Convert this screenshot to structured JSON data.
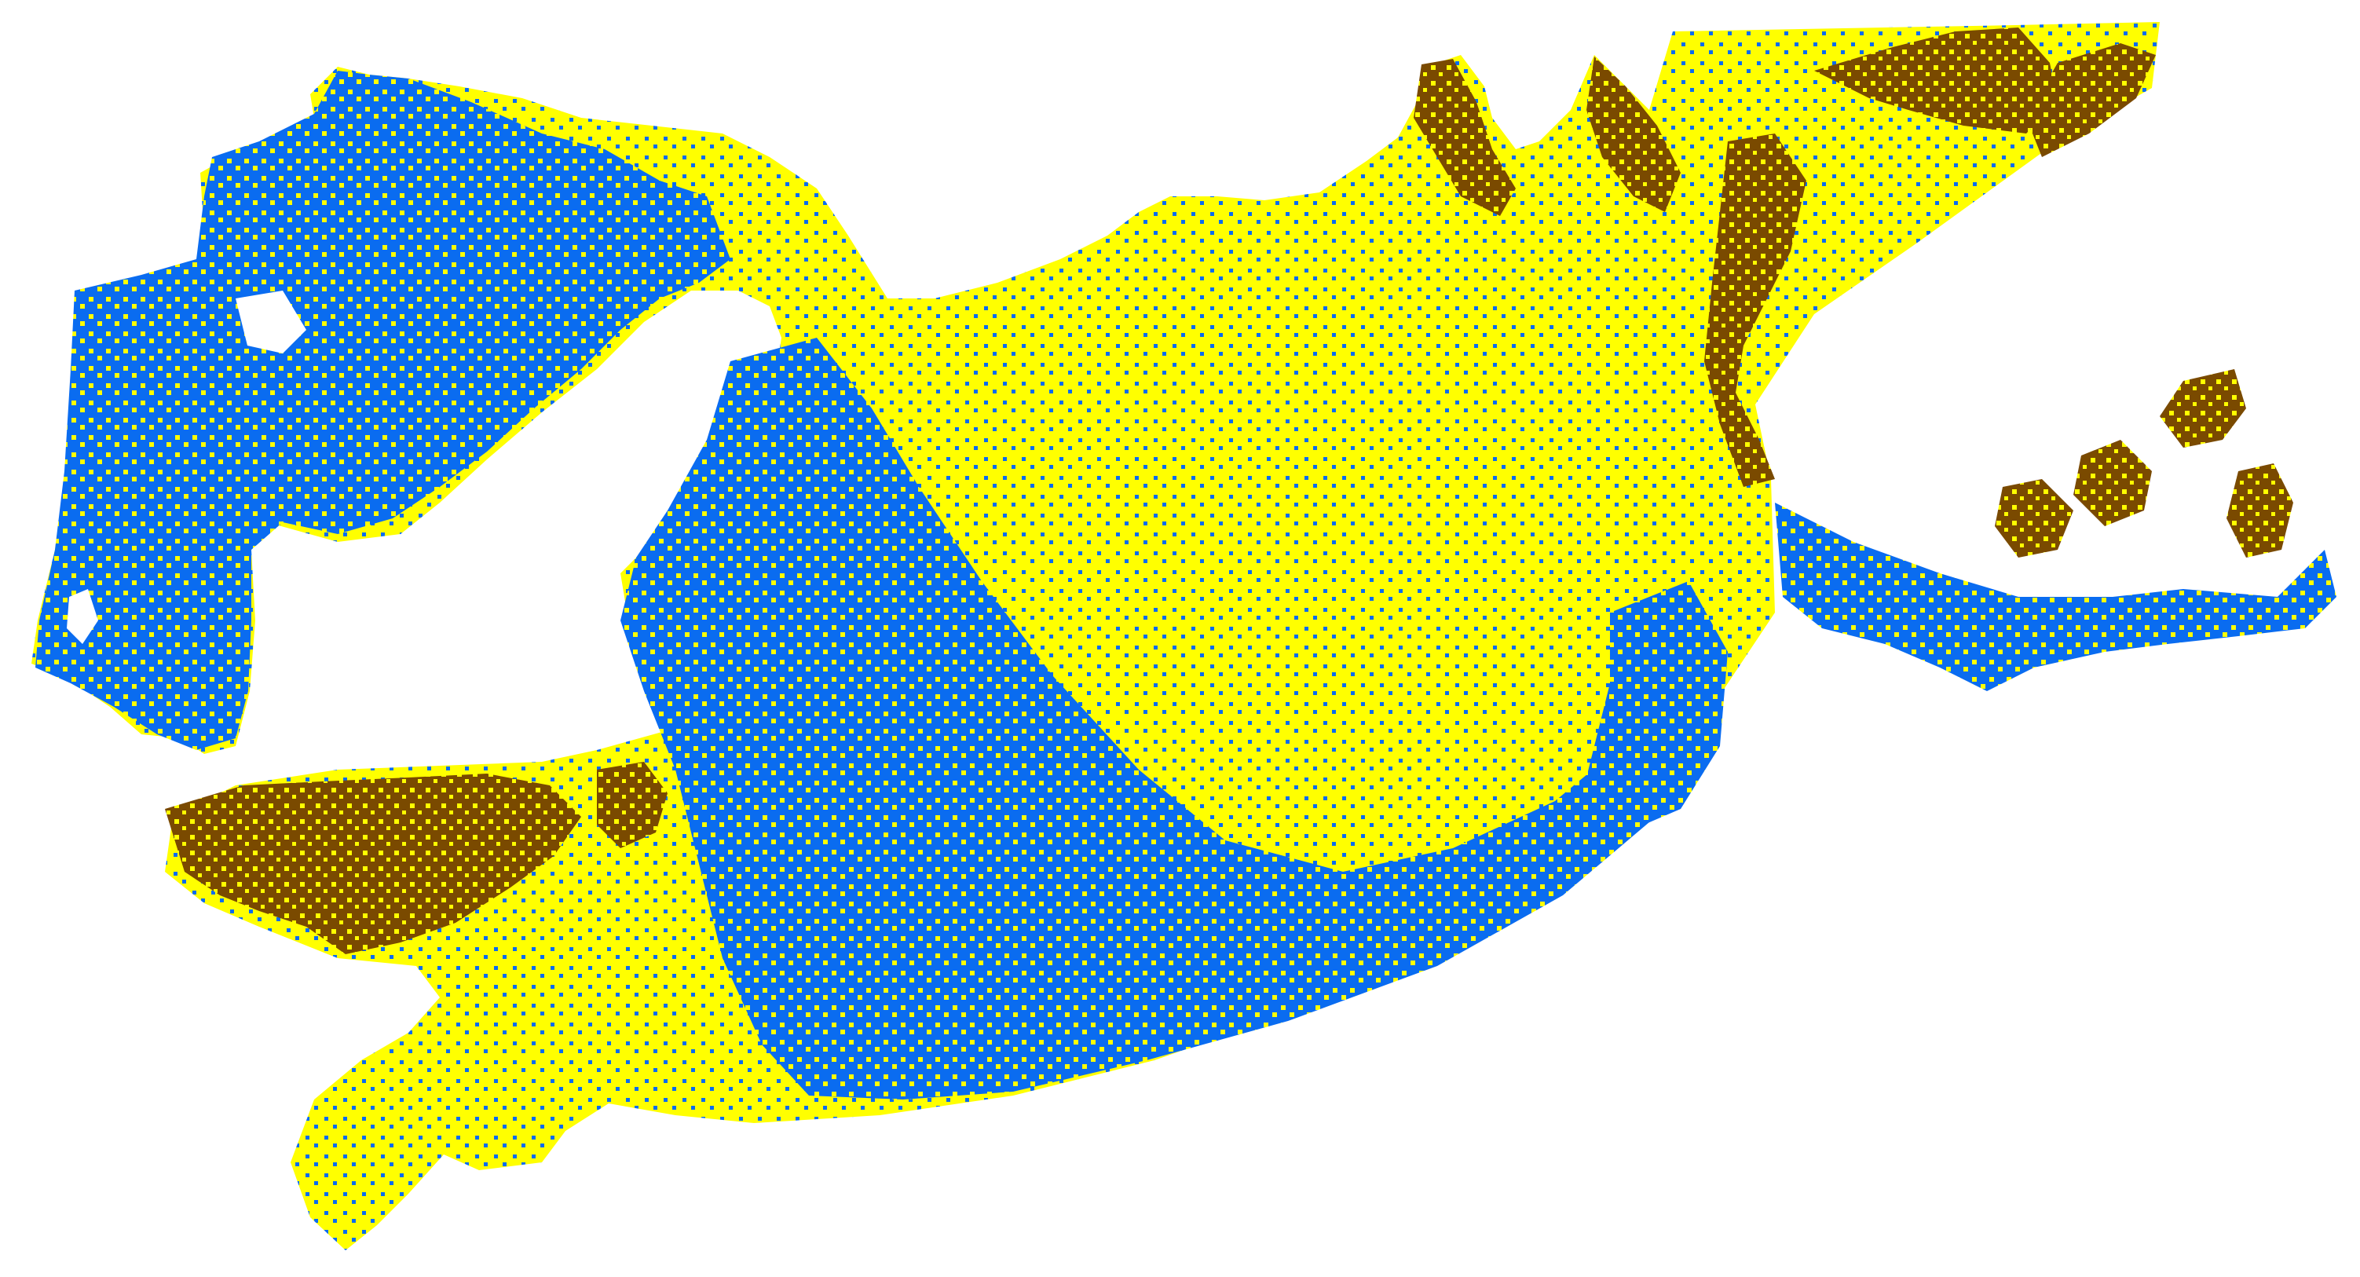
{
  "map": {
    "background_color": "#FFFFFF",
    "classes": [
      {
        "name": "class-yellow",
        "color": "#FFFF00"
      },
      {
        "name": "class-blue",
        "color": "#0A6CF0"
      },
      {
        "name": "class-brown",
        "color": "#7A4A00"
      }
    ],
    "labels": []
  }
}
